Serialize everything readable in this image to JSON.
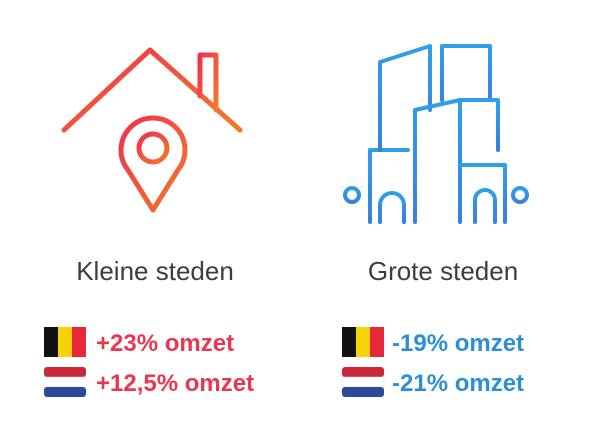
{
  "columns": [
    {
      "title": "Kleine steden",
      "rows": [
        "+23% omzet",
        "+12,5% omzet"
      ]
    },
    {
      "title": "Grote steden",
      "rows": [
        "-19% omzet",
        "-21% omzet"
      ]
    }
  ]
}
